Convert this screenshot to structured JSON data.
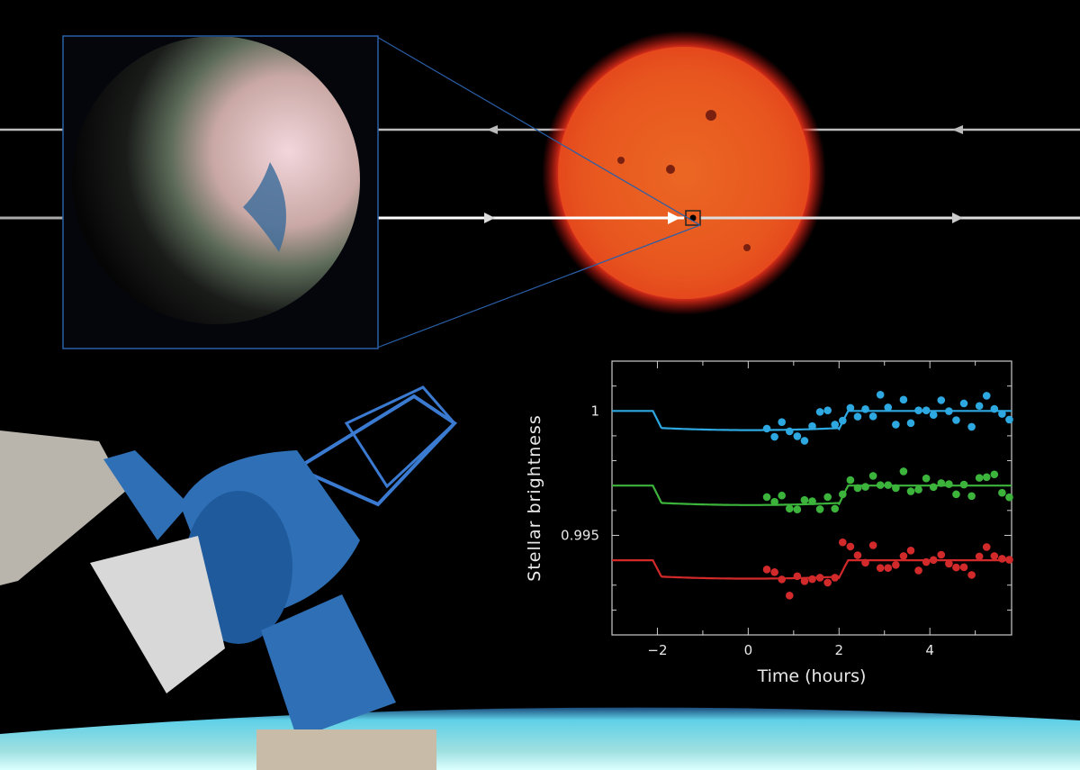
{
  "colors": {
    "background": "#000000",
    "inset_border": "#2a5fa8",
    "star": "#e8401c",
    "earth_atmosphere": "#5fd0e8",
    "telescope": "#2f6fb5",
    "series_blue": "#2ea8e0",
    "series_green": "#3cb43c",
    "series_red": "#d22a2a"
  },
  "illustration": {
    "inset": "exoplanet close-up",
    "star": "red dwarf star with transiting planet",
    "arrows": [
      "light-arrow-left",
      "light-arrow-right"
    ],
    "telescope": "ground telescope with instrument",
    "earth": "earth horizon"
  },
  "chart_data": {
    "type": "scatter",
    "xlabel": "Time (hours)",
    "ylabel": "Stellar brightness",
    "xlim": [
      -3,
      5.8
    ],
    "ylim": [
      0.991,
      1.002
    ],
    "xticks": [
      -2,
      0,
      2,
      4
    ],
    "xtick_labels": [
      "−2",
      "0",
      "2",
      "4"
    ],
    "yticks": [
      0.995,
      1
    ],
    "ytick_labels": [
      "0.995",
      "1"
    ],
    "grid": false,
    "legend": "none",
    "transit": {
      "ingress": [
        -2.1,
        -1.9
      ],
      "egress": [
        2.0,
        2.2
      ]
    },
    "x": [
      0.41,
      0.58,
      0.74,
      0.91,
      1.08,
      1.24,
      1.41,
      1.58,
      1.75,
      1.91,
      2.08,
      2.25,
      2.41,
      2.58,
      2.75,
      2.91,
      3.08,
      3.25,
      3.42,
      3.58,
      3.75,
      3.92,
      4.08,
      4.25,
      4.42,
      4.58,
      4.75,
      4.92,
      5.09,
      5.25,
      5.42,
      5.59,
      5.75
    ],
    "series": [
      {
        "color": "#2ea8e0",
        "baseline": 1.0,
        "in_transit": 0.99927,
        "values": [
          0.99929,
          0.99896,
          0.99955,
          0.99918,
          0.99898,
          0.9988,
          0.99939,
          0.99996,
          1.00002,
          0.99945,
          0.99961,
          1.00012,
          0.99977,
          1.00007,
          0.99978,
          1.00065,
          1.00014,
          0.99945,
          1.00045,
          0.99951,
          1.00002,
          1.00002,
          0.99984,
          1.00043,
          0.99999,
          0.99963,
          1.0003,
          0.99936,
          1.0002,
          1.00061,
          1.00008,
          0.99988,
          0.99965
        ]
      },
      {
        "color": "#3cb43c",
        "baseline": 0.997,
        "in_transit": 0.99626,
        "values": [
          0.99654,
          0.99635,
          0.9966,
          0.99607,
          0.99604,
          0.99642,
          0.99637,
          0.99605,
          0.99654,
          0.99607,
          0.99665,
          0.99722,
          0.9969,
          0.99695,
          0.99739,
          0.99702,
          0.99702,
          0.9969,
          0.99757,
          0.99677,
          0.99684,
          0.99729,
          0.99694,
          0.9971,
          0.99706,
          0.99665,
          0.99704,
          0.99658,
          0.99731,
          0.99734,
          0.99745,
          0.99671,
          0.99653
        ]
      },
      {
        "color": "#d22a2a",
        "baseline": 0.994,
        "in_transit": 0.9933,
        "values": [
          0.99363,
          0.99352,
          0.99323,
          0.99258,
          0.99336,
          0.99316,
          0.99324,
          0.9933,
          0.9931,
          0.9933,
          0.99472,
          0.99455,
          0.9942,
          0.9939,
          0.9946,
          0.99369,
          0.99369,
          0.99381,
          0.99417,
          0.99439,
          0.99359,
          0.99393,
          0.99401,
          0.99422,
          0.99386,
          0.99371,
          0.99372,
          0.99341,
          0.99415,
          0.99453,
          0.99417,
          0.99406,
          0.99402
        ]
      }
    ]
  }
}
